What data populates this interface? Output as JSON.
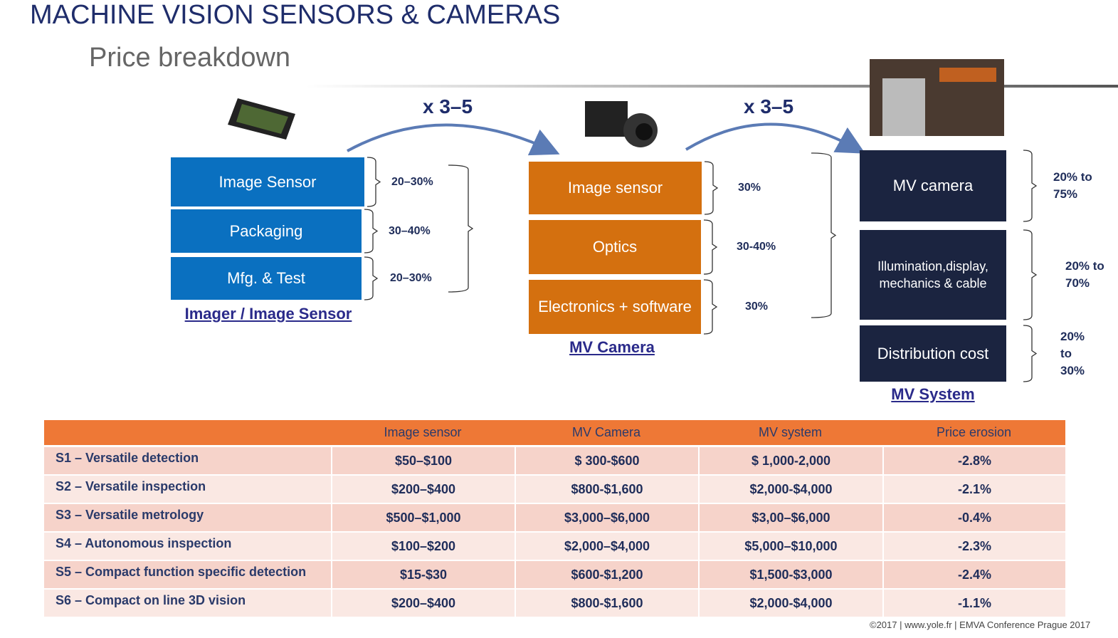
{
  "header": {
    "title": "MACHINE VISION SENSORS & CAMERAS",
    "subtitle": "Price breakdown"
  },
  "multipliers": [
    "x 3–5",
    "x 3–5"
  ],
  "stages": [
    {
      "caption": "Imager / Image Sensor",
      "blocks": [
        {
          "label": "Image Sensor",
          "share": "20–30%"
        },
        {
          "label": "Packaging",
          "share": "30–40%"
        },
        {
          "label": "Mfg. & Test",
          "share": "20–30%"
        }
      ]
    },
    {
      "caption": "MV Camera",
      "blocks": [
        {
          "label": "Image sensor",
          "share": "30%"
        },
        {
          "label": "Optics",
          "share": "30-40%"
        },
        {
          "label": "Electronics + software",
          "share": "30%"
        }
      ]
    },
    {
      "caption": "MV System",
      "blocks": [
        {
          "label": "MV camera",
          "share": "20% to 75%"
        },
        {
          "label": "Illumination,display, mechanics & cable",
          "share": "20% to 70%"
        },
        {
          "label": "Distribution cost",
          "share": "20% to 30%"
        }
      ]
    }
  ],
  "table": {
    "columns": [
      "Image sensor",
      "MV Camera",
      "MV system",
      "Price erosion"
    ],
    "rows": [
      {
        "label": "S1 – Versatile detection",
        "cells": [
          "$50–$100",
          "$ 300-$600",
          "$ 1,000-2,000",
          "-2.8%"
        ]
      },
      {
        "label": "S2 – Versatile inspection",
        "cells": [
          "$200–$400",
          "$800-$1,600",
          "$2,000-$4,000",
          "-2.1%"
        ]
      },
      {
        "label": "S3 – Versatile metrology",
        "cells": [
          "$500–$1,000",
          "$3,000–$6,000",
          "$3,00–$6,000",
          "-0.4%"
        ]
      },
      {
        "label": "S4 – Autonomous inspection",
        "cells": [
          "$100–$200",
          "$2,000–$4,000",
          "$5,000–$10,000",
          "-2.3%"
        ]
      },
      {
        "label": "S5 – Compact function specific detection",
        "cells": [
          "$15-$30",
          "$600-$1,200",
          "$1,500-$3,000",
          "-2.4%"
        ]
      },
      {
        "label": "S6 – Compact on line 3D vision",
        "cells": [
          "$200–$400",
          "$800-$1,600",
          "$2,000-$4,000",
          "-1.1%"
        ]
      }
    ]
  },
  "footer": "©2017 | www.yole.fr | EMVA Conference Prague 2017"
}
